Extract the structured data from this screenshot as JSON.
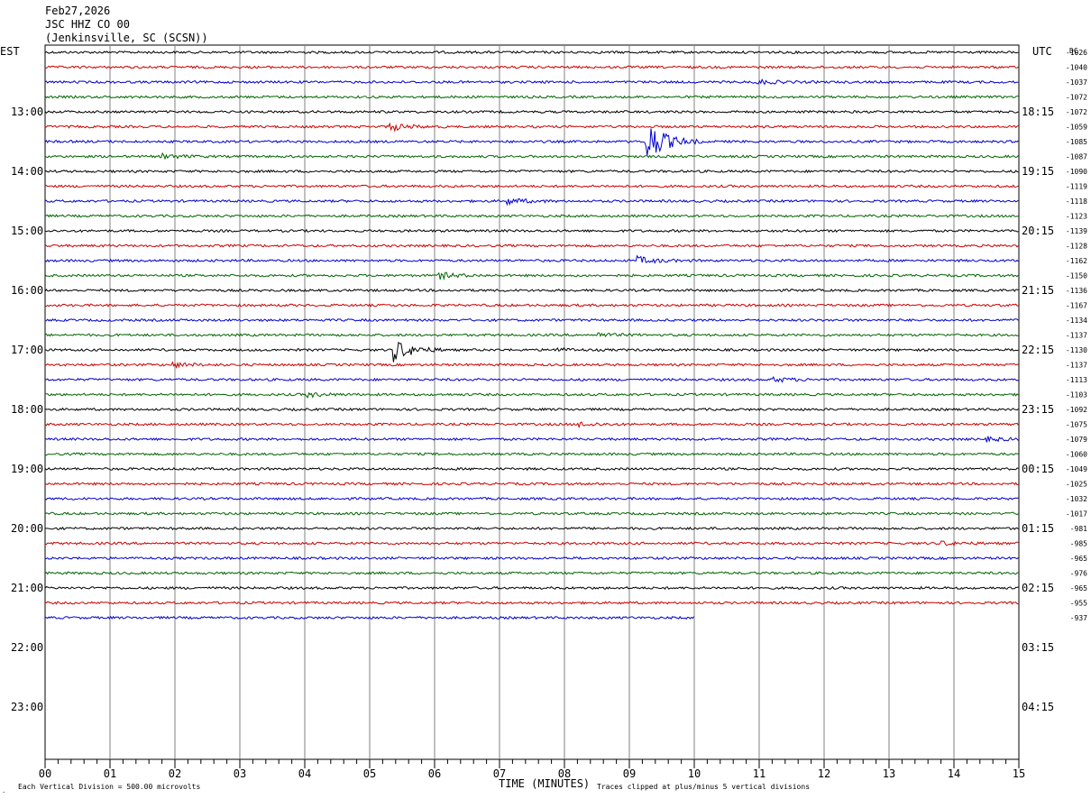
{
  "header": {
    "date": "Feb27,2026",
    "channel": "JSC HHZ CO 00",
    "station": "(Jenkinsville, SC (SCSN))"
  },
  "labels": {
    "left_tz": "EST",
    "right_tz": "UTC",
    "dc_header": "DC",
    "xlabel": "TIME (MINUTES)",
    "scale_note": "Each Vertical Division =  500.00 microvolts",
    "clip_note": "Traces clipped at plus/minus 5 vertical divisions"
  },
  "chart_data": {
    "type": "line",
    "title": "JSC HHZ CO 00",
    "xlabel": "TIME (MINUTES)",
    "ylabel": "",
    "xlim": [
      0,
      15
    ],
    "x_ticks": [
      "00",
      "01",
      "02",
      "03",
      "04",
      "05",
      "06",
      "07",
      "08",
      "09",
      "10",
      "11",
      "12",
      "13",
      "14",
      "15"
    ],
    "trace_colors": [
      "#000000",
      "#cc0000",
      "#0000cc",
      "#006600"
    ],
    "trace_minutes_per_line": 15,
    "last_trace_end_minute": 10,
    "left_time_labels": [
      "13:00",
      "14:00",
      "15:00",
      "16:00",
      "17:00",
      "18:00",
      "19:00",
      "20:00",
      "21:00",
      "22:00",
      "23:00"
    ],
    "right_time_labels": [
      "18:15",
      "19:15",
      "20:15",
      "21:15",
      "22:15",
      "23:15",
      "00:15",
      "01:15",
      "02:15",
      "03:15",
      "04:15"
    ],
    "dc_offsets": [
      "-1026",
      "-1040",
      "-1037",
      "-1072",
      "-1072",
      "-1059",
      "-1085",
      "-1087",
      "-1090",
      "-1119",
      "-1118",
      "-1123",
      "-1139",
      "-1128",
      "-1162",
      "-1150",
      "-1136",
      "-1167",
      "-1134",
      "-1137",
      "-1130",
      "-1137",
      "-1113",
      "-1103",
      "-1092",
      "-1075",
      "-1079",
      "-1060",
      "-1049",
      "-1025",
      "-1032",
      "-1017",
      "-981",
      "-985",
      "-965",
      "-976",
      "-965",
      "-955",
      "-937"
    ],
    "events": [
      {
        "line": 2,
        "minute": 10.95,
        "amp": 0.6
      },
      {
        "line": 5,
        "minute": 5.3,
        "amp": 1.0
      },
      {
        "line": 6,
        "minute": 9.25,
        "amp": 6.0,
        "clipped": true
      },
      {
        "line": 7,
        "minute": 1.8,
        "amp": 0.6
      },
      {
        "line": 10,
        "minute": 7.1,
        "amp": 0.8
      },
      {
        "line": 14,
        "minute": 9.1,
        "amp": 1.0
      },
      {
        "line": 15,
        "minute": 6.05,
        "amp": 0.8
      },
      {
        "line": 19,
        "minute": 8.5,
        "amp": 0.5
      },
      {
        "line": 20,
        "minute": 5.35,
        "amp": 3.0
      },
      {
        "line": 20,
        "minute": 7.8,
        "amp": 0.5
      },
      {
        "line": 21,
        "minute": 1.95,
        "amp": 0.6
      },
      {
        "line": 22,
        "minute": 11.2,
        "amp": 0.6
      },
      {
        "line": 23,
        "minute": 4.0,
        "amp": 0.6
      },
      {
        "line": 25,
        "minute": 8.2,
        "amp": 0.6
      },
      {
        "line": 26,
        "minute": 14.5,
        "amp": 0.5
      },
      {
        "line": 33,
        "minute": 13.8,
        "amp": 0.5
      }
    ]
  }
}
